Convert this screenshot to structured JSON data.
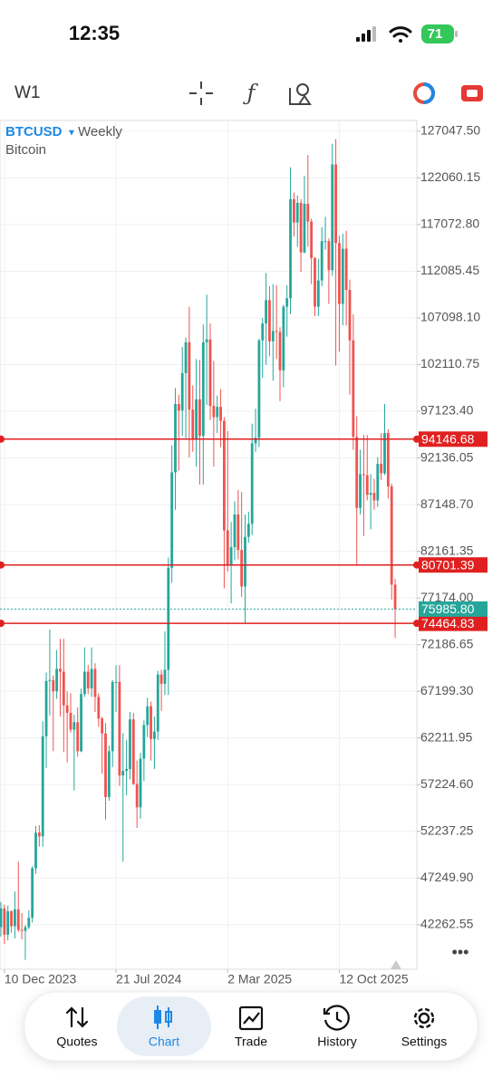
{
  "status_bar": {
    "time": "12:35",
    "battery": "71"
  },
  "toolbar": {
    "timeframe": "W1"
  },
  "chart_data": {
    "type": "candlestick",
    "symbol": "BTCUSD",
    "period": "Weekly",
    "description": "Bitcoin",
    "open": [
      42000,
      44000,
      41200,
      43700,
      42100,
      43900,
      41700,
      41600,
      42000,
      43000,
      48300,
      52100,
      51700,
      62400,
      68300,
      68400,
      67200,
      69600,
      69300,
      65700,
      64900,
      63100,
      63900,
      60800,
      66900,
      69300,
      67500,
      69600,
      66600,
      64300,
      62700,
      55900,
      60800,
      68200,
      68200,
      58200,
      58700,
      58900,
      64200,
      57300,
      54800,
      60000,
      63600,
      65600,
      62100,
      62900,
      69000,
      68000,
      69500,
      80400,
      90600,
      97900,
      97200,
      101200,
      104500,
      97300,
      94200,
      98400,
      94500,
      104500,
      104800,
      97700,
      96500,
      97600,
      96100,
      84400,
      80700,
      82600,
      86100,
      82300,
      78400,
      83700,
      85100,
      93700,
      94300,
      104700,
      106500,
      109000,
      104600,
      105700,
      105600,
      101500,
      108300,
      109200,
      119800,
      117300,
      119400,
      114100,
      119300,
      117400,
      113500,
      108300,
      111100,
      115300,
      115300,
      112200,
      123500,
      115100,
      108600,
      114500,
      110100,
      104700,
      94400,
      86800,
      90400,
      90300,
      88200,
      88400,
      87600,
      91500,
      90500,
      94800,
      89100,
      78600
    ],
    "high": [
      44700,
      44400,
      44300,
      43800,
      45800,
      49000,
      43500,
      42200,
      43800,
      48500,
      52800,
      52900,
      64000,
      69200,
      73800,
      68900,
      71600,
      72800,
      72800,
      67200,
      67000,
      64700,
      65500,
      67500,
      71900,
      70000,
      71900,
      70200,
      67000,
      64500,
      63800,
      61400,
      68400,
      70000,
      70000,
      62700,
      62000,
      65000,
      64900,
      59800,
      60600,
      64100,
      66500,
      66100,
      64500,
      69400,
      69500,
      73600,
      81500,
      93500,
      99600,
      98900,
      104000,
      105000,
      108300,
      99900,
      102700,
      102600,
      106400,
      109600,
      106500,
      102500,
      98800,
      99500,
      96500,
      95000,
      85300,
      87500,
      88700,
      88500,
      86100,
      86400,
      95800,
      97400,
      104900,
      107100,
      111900,
      110500,
      110700,
      110600,
      106100,
      108500,
      110600,
      123200,
      120500,
      120200,
      119800,
      122300,
      124500,
      117700,
      113600,
      113400,
      116800,
      117900,
      115600,
      125700,
      126200,
      115900,
      116100,
      116400,
      111200,
      107500,
      96600,
      93000,
      94600,
      94600,
      90400,
      89900,
      92200,
      94800,
      97900,
      95200,
      89400,
      79200
    ],
    "low": [
      41000,
      40200,
      40600,
      41400,
      40800,
      41500,
      40700,
      38500,
      41800,
      42500,
      47700,
      50600,
      50600,
      59000,
      64600,
      60800,
      66400,
      64500,
      60700,
      59600,
      62800,
      56600,
      60200,
      60700,
      66600,
      66900,
      66600,
      65000,
      63400,
      58400,
      53500,
      55500,
      59100,
      65000,
      57100,
      49000,
      56100,
      57800,
      57200,
      52600,
      53600,
      57600,
      62300,
      59800,
      58900,
      62000,
      65100,
      66800,
      66800,
      78800,
      86600,
      90800,
      94500,
      94200,
      92200,
      92800,
      91200,
      89300,
      89300,
      97800,
      96200,
      91200,
      94800,
      93300,
      78200,
      80000,
      76600,
      81200,
      81300,
      77300,
      74500,
      83100,
      83900,
      92800,
      93300,
      100700,
      102100,
      103000,
      100400,
      102700,
      98200,
      99700,
      105100,
      107500,
      115800,
      114700,
      112000,
      114000,
      114700,
      110700,
      107300,
      107300,
      110500,
      114400,
      108600,
      111600,
      102000,
      103500,
      106300,
      106300,
      98900,
      93000,
      80600,
      86100,
      83800,
      87600,
      84500,
      86600,
      86900,
      89800,
      90300,
      87800,
      77000,
      72900
    ],
    "close": [
      44000,
      41200,
      43700,
      42100,
      43900,
      41700,
      41600,
      42000,
      43000,
      48300,
      52100,
      51700,
      62400,
      68300,
      68400,
      67200,
      69600,
      69300,
      65700,
      64900,
      63100,
      63900,
      60800,
      66900,
      69300,
      67500,
      69600,
      66600,
      64300,
      62700,
      55900,
      60800,
      68200,
      68200,
      58200,
      58700,
      58900,
      64200,
      57300,
      54800,
      60000,
      63600,
      65600,
      62100,
      62900,
      69000,
      68000,
      69500,
      80400,
      90600,
      97900,
      97200,
      101200,
      104500,
      97300,
      94200,
      98400,
      94500,
      104500,
      104800,
      97700,
      96500,
      97600,
      96100,
      84400,
      80700,
      82600,
      86100,
      82300,
      78400,
      83700,
      85100,
      93700,
      94300,
      104700,
      106500,
      109000,
      104600,
      105700,
      105600,
      101500,
      108300,
      109200,
      119800,
      117300,
      119400,
      114100,
      119300,
      117400,
      113500,
      108300,
      111100,
      115300,
      115300,
      112200,
      123500,
      115100,
      108600,
      114500,
      110100,
      104700,
      94400,
      86800,
      90400,
      90300,
      88200,
      88400,
      87600,
      91500,
      90500,
      94800,
      89100,
      78600,
      75985.8
    ],
    "up_color": "#26a69a",
    "down_color": "#ef5350",
    "xlim": [
      -0.26,
      119.22
    ],
    "xticks": [
      {
        "value": 1,
        "label": "10 Dec 2023"
      },
      {
        "value": 33,
        "label": "21 Jul 2024"
      },
      {
        "value": 65,
        "label": "2 Mar 2025"
      },
      {
        "value": 97,
        "label": "12 Oct 2025"
      }
    ],
    "ylim": [
      37500,
      128200
    ],
    "yticks": [
      {
        "value": 127047.5,
        "label": "127047.50"
      },
      {
        "value": 122060.15,
        "label": "122060.15"
      },
      {
        "value": 117072.8,
        "label": "117072.80"
      },
      {
        "value": 112085.45,
        "label": "112085.45"
      },
      {
        "value": 107098.1,
        "label": "107098.10"
      },
      {
        "value": 102110.75,
        "label": "102110.75"
      },
      {
        "value": 97123.4,
        "label": "97123.40"
      },
      {
        "value": 92136.05,
        "label": "92136.05"
      },
      {
        "value": 87148.7,
        "label": "87148.70"
      },
      {
        "value": 82161.35,
        "label": "82161.35"
      },
      {
        "value": 77174,
        "label": "77174.00"
      },
      {
        "value": 72186.65,
        "label": "72186.65"
      },
      {
        "value": 67199.3,
        "label": "67199.30"
      },
      {
        "value": 62211.95,
        "label": "62211.95"
      },
      {
        "value": 57224.6,
        "label": "57224.60"
      },
      {
        "value": 52237.25,
        "label": "52237.25"
      },
      {
        "value": 47249.9,
        "label": "47249.90"
      },
      {
        "value": 42262.55,
        "label": "42262.55"
      }
    ],
    "grid": true,
    "price_lines": [
      {
        "value": 94146.68,
        "color": "#e02020"
      },
      {
        "value": 80701.39,
        "color": "#e02020"
      },
      {
        "value": 74464.83,
        "color": "#e02020"
      }
    ],
    "last_price": {
      "value": 75985.8,
      "label": "75985.80",
      "color": "#26a69a"
    }
  },
  "nav": {
    "items": [
      "Quotes",
      "Chart",
      "Trade",
      "History",
      "Settings"
    ],
    "active": 1
  }
}
